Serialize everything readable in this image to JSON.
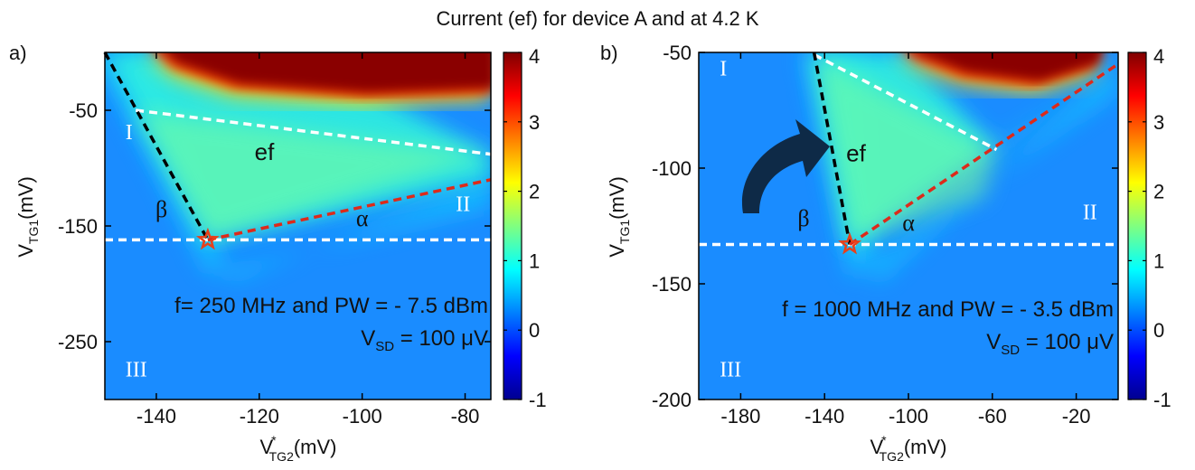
{
  "title": "Current (ef) for device A and at 4.2 K",
  "colormap": {
    "stops": [
      "#00008f",
      "#0000ff",
      "#0080ff",
      "#00ffff",
      "#80ff80",
      "#ffff00",
      "#ff8000",
      "#ff0000",
      "#800000"
    ],
    "min": -1,
    "max": 4
  },
  "colors": {
    "dashed_white": "#ffffff",
    "dashed_black": "#000000",
    "dashed_red": "#dd2a1a",
    "star": "#e8401a",
    "arrow": "#0e2a47"
  },
  "chart_data": [
    {
      "type": "heatmap",
      "panel_label": "a)",
      "xlabel": "V*TG2(mV)",
      "ylabel": "VTG1(mV)",
      "xlim": [
        -150,
        -75
      ],
      "ylim": [
        -300,
        0
      ],
      "xticks": [
        "-140",
        "-120",
        "-100",
        "-80"
      ],
      "yticks": [
        "-50",
        "-150",
        "-250"
      ],
      "xtick_values": [
        -140,
        -120,
        -100,
        -80
      ],
      "ytick_values": [
        -50,
        -150,
        -250
      ],
      "colorbar_ticks": [
        "-1",
        "0",
        "1",
        "2",
        "3",
        "4"
      ],
      "colorbar_values": [
        -1,
        0,
        1,
        2,
        3,
        4
      ],
      "region_labels": {
        "I": "I",
        "II": "II",
        "III": "III"
      },
      "region_positions": {
        "I": [
          -146,
          -75
        ],
        "II": [
          -79,
          -137
        ],
        "III": [
          -146,
          -280
        ]
      },
      "line_labels": {
        "alpha": "α",
        "beta": "β",
        "ef": "ef"
      },
      "line_label_positions": {
        "alpha": [
          -100,
          -150
        ],
        "beta": [
          -139,
          -142
        ],
        "ef": [
          -119,
          -93
        ]
      },
      "annotation_line1": "f= 250 MHz and PW = - 7.5 dBm",
      "annotation_line2": "V",
      "annotation_line2_sub": "SD",
      "annotation_line2_rest": " = 100 μV",
      "star": [
        -130,
        -162
      ],
      "lines": [
        {
          "kind": "white",
          "points": [
            [
              -150,
              -162
            ],
            [
              -75,
              -162
            ]
          ]
        },
        {
          "kind": "white",
          "points": [
            [
              -144,
              -50
            ],
            [
              -75,
              -88
            ]
          ]
        },
        {
          "kind": "black",
          "points": [
            [
              -150,
              0
            ],
            [
              -130,
              -162
            ]
          ]
        },
        {
          "kind": "red",
          "points": [
            [
              -130,
              -162
            ],
            [
              -75,
              -110
            ]
          ]
        }
      ],
      "hot_region": [
        [
          -142,
          0
        ],
        [
          -75,
          0
        ],
        [
          -75,
          -42
        ],
        [
          -100,
          -46
        ],
        [
          -125,
          -38
        ],
        [
          -137,
          -20
        ]
      ]
    },
    {
      "type": "heatmap",
      "panel_label": "b)",
      "xlabel": "V*TG2(mV)",
      "ylabel": "VTG1(mV)",
      "xlim": [
        -200,
        0
      ],
      "ylim": [
        -200,
        -50
      ],
      "xticks": [
        "-180",
        "-140",
        "-100",
        "-60",
        "-20"
      ],
      "yticks": [
        "-50",
        "-100",
        "-150",
        "-200"
      ],
      "xtick_values": [
        -180,
        -140,
        -100,
        -60,
        -20
      ],
      "ytick_values": [
        -50,
        -100,
        -150,
        -200
      ],
      "colorbar_ticks": [
        "-1",
        "0",
        "1",
        "2",
        "3",
        "4"
      ],
      "colorbar_values": [
        -1,
        0,
        1,
        2,
        3,
        4
      ],
      "region_labels": {
        "I": "I",
        "II": "II",
        "III": "III"
      },
      "region_positions": {
        "I": [
          -190,
          -60
        ],
        "II": [
          -10,
          -122
        ],
        "III": [
          -190,
          -190
        ]
      },
      "line_labels": {
        "alpha": "α",
        "beta": "β",
        "ef": "ef"
      },
      "line_label_positions": {
        "alpha": [
          -100,
          -127
        ],
        "beta": [
          -150,
          -125
        ],
        "ef": [
          -125,
          -97
        ]
      },
      "annotation_line1": "f = 1000 MHz and PW = - 3.5 dBm",
      "annotation_line2": "V",
      "annotation_line2_sub": "SD",
      "annotation_line2_rest": " = 100 μV",
      "star": [
        -128,
        -133
      ],
      "lines": [
        {
          "kind": "white",
          "points": [
            [
              -200,
              -133
            ],
            [
              0,
              -133
            ]
          ]
        },
        {
          "kind": "white",
          "points": [
            [
              -145,
              -51
            ],
            [
              -58,
              -92
            ]
          ]
        },
        {
          "kind": "black",
          "points": [
            [
              -145,
              -50
            ],
            [
              -128,
              -133
            ]
          ]
        },
        {
          "kind": "red",
          "points": [
            [
              -128,
              -133
            ],
            [
              0,
              -55
            ]
          ]
        }
      ],
      "hot_region": [
        [
          -105,
          -50
        ],
        [
          -8,
          -50
        ],
        [
          -12,
          -60
        ],
        [
          -40,
          -68
        ],
        [
          -75,
          -64
        ],
        [
          -98,
          -56
        ]
      ]
    }
  ]
}
